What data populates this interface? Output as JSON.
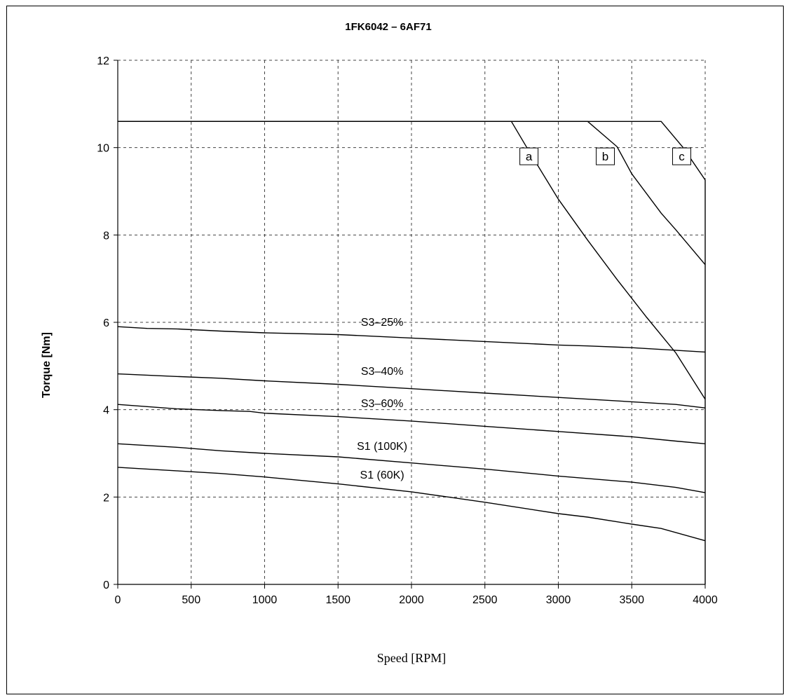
{
  "chart_data": {
    "type": "line",
    "title": "1FK6042 – 6AF71",
    "xlabel": "Speed [RPM]",
    "ylabel": "Torque [Nm]",
    "xlim": [
      0,
      4000
    ],
    "ylim": [
      0,
      12
    ],
    "x_ticks": [
      0,
      500,
      1000,
      1500,
      2000,
      2500,
      3000,
      3500,
      4000
    ],
    "y_ticks": [
      0,
      2,
      4,
      6,
      8,
      10,
      12
    ],
    "grid": true,
    "series": [
      {
        "name": "S3–25%",
        "points": [
          [
            0,
            5.9
          ],
          [
            200,
            5.86
          ],
          [
            400,
            5.85
          ],
          [
            700,
            5.8
          ],
          [
            1000,
            5.76
          ],
          [
            1500,
            5.72
          ],
          [
            2000,
            5.64
          ],
          [
            2500,
            5.56
          ],
          [
            3000,
            5.48
          ],
          [
            3200,
            5.46
          ],
          [
            3500,
            5.42
          ],
          [
            3800,
            5.36
          ],
          [
            4000,
            5.32
          ]
        ]
      },
      {
        "name": "S3–40%",
        "points": [
          [
            0,
            4.82
          ],
          [
            400,
            4.76
          ],
          [
            700,
            4.72
          ],
          [
            1000,
            4.66
          ],
          [
            1500,
            4.58
          ],
          [
            2000,
            4.48
          ],
          [
            2500,
            4.38
          ],
          [
            3000,
            4.28
          ],
          [
            3500,
            4.18
          ],
          [
            3800,
            4.12
          ],
          [
            4000,
            4.04
          ]
        ]
      },
      {
        "name": "S3–60%",
        "points": [
          [
            0,
            4.12
          ],
          [
            400,
            4.02
          ],
          [
            700,
            3.98
          ],
          [
            900,
            3.96
          ],
          [
            1000,
            3.92
          ],
          [
            1500,
            3.84
          ],
          [
            2000,
            3.74
          ],
          [
            2500,
            3.62
          ],
          [
            3000,
            3.5
          ],
          [
            3500,
            3.38
          ],
          [
            3800,
            3.28
          ],
          [
            4000,
            3.22
          ]
        ]
      },
      {
        "name": "S1 (100K)",
        "points": [
          [
            0,
            3.22
          ],
          [
            400,
            3.14
          ],
          [
            700,
            3.06
          ],
          [
            1000,
            3.0
          ],
          [
            1500,
            2.92
          ],
          [
            2000,
            2.78
          ],
          [
            2500,
            2.64
          ],
          [
            3000,
            2.48
          ],
          [
            3500,
            2.34
          ],
          [
            3800,
            2.22
          ],
          [
            4000,
            2.1
          ]
        ]
      },
      {
        "name": "S1 (60K)",
        "points": [
          [
            0,
            2.68
          ],
          [
            400,
            2.6
          ],
          [
            700,
            2.54
          ],
          [
            1000,
            2.46
          ],
          [
            1500,
            2.3
          ],
          [
            2000,
            2.12
          ],
          [
            2500,
            1.88
          ],
          [
            3000,
            1.62
          ],
          [
            3200,
            1.54
          ],
          [
            3500,
            1.38
          ],
          [
            3700,
            1.28
          ],
          [
            4000,
            1.0
          ]
        ]
      },
      {
        "name": "a",
        "points": [
          [
            0,
            10.6
          ],
          [
            2680,
            10.6
          ],
          [
            2800,
            9.92
          ],
          [
            3000,
            8.82
          ],
          [
            3200,
            7.88
          ],
          [
            3400,
            6.98
          ],
          [
            3600,
            6.12
          ],
          [
            3800,
            5.3
          ],
          [
            4000,
            4.24
          ]
        ]
      },
      {
        "name": "b",
        "points": [
          [
            0,
            10.6
          ],
          [
            3200,
            10.6
          ],
          [
            3400,
            10.02
          ],
          [
            3500,
            9.4
          ],
          [
            3700,
            8.5
          ],
          [
            3800,
            8.12
          ],
          [
            4000,
            7.32
          ]
        ]
      },
      {
        "name": "c",
        "points": [
          [
            0,
            10.6
          ],
          [
            3700,
            10.6
          ],
          [
            3850,
            10.0
          ],
          [
            4000,
            9.26
          ]
        ]
      }
    ],
    "curve_labels": [
      {
        "text": "S3–25%",
        "x": 1800,
        "y": 5.92
      },
      {
        "text": "S3–40%",
        "x": 1800,
        "y": 4.8
      },
      {
        "text": "S3–60%",
        "x": 1800,
        "y": 4.06
      },
      {
        "text": "S1 (100K)",
        "x": 1800,
        "y": 3.08
      },
      {
        "text": "S1 (60K)",
        "x": 1800,
        "y": 2.42
      }
    ],
    "boxed_labels": [
      {
        "text": "a",
        "x": 2800,
        "y": 9.8
      },
      {
        "text": "b",
        "x": 3320,
        "y": 9.8
      },
      {
        "text": "c",
        "x": 3840,
        "y": 9.8
      }
    ]
  }
}
